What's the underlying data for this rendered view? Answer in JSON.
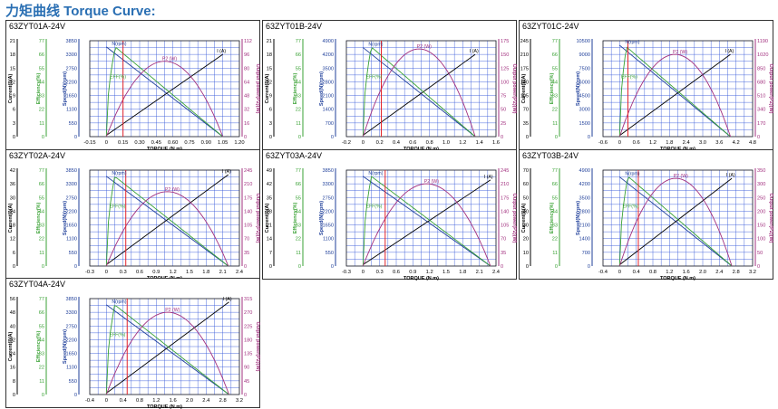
{
  "page_title": "力矩曲线 Torque Curve:",
  "colors": {
    "title": "#2a6fb3",
    "grid": "#3a5bd9",
    "current": "#000000",
    "efficiency": "#3aa235",
    "speed": "#1f3f9a",
    "power": "#a2307f",
    "marker": "#e3232a"
  },
  "chart_data": [
    {
      "type": "line",
      "title": "63ZYT01A-24V",
      "current_ticks": [
        "0",
        "3",
        "6",
        "9",
        "12",
        "15",
        "18",
        "21"
      ],
      "eff_ticks": [
        "0",
        "11",
        "22",
        "33",
        "44",
        "55",
        "66",
        "77"
      ],
      "speed_ticks": [
        "0",
        "550",
        "1100",
        "1650",
        "2200",
        "2750",
        "3300",
        "3850"
      ],
      "power_ticks": [
        "0",
        "16",
        "32",
        "48",
        "64",
        "80",
        "96",
        "112"
      ],
      "x_ticks": [
        "-0.15",
        "0",
        "0.15",
        "0.30",
        "0.45",
        "0.60",
        "0.75",
        "0.90",
        "1.05",
        "1.20"
      ],
      "xlim": [
        -0.15,
        1.2
      ],
      "ylim_speed": [
        0,
        3850
      ],
      "ylim_current": [
        0,
        21
      ],
      "ylim_eff": [
        0,
        77
      ],
      "ylim_power": [
        0,
        112
      ],
      "stall_torque": 1.05,
      "no_load_speed": 3600,
      "stall_current": 18,
      "no_load_current": 0.3,
      "max_eff": 72,
      "eff_peak_torque": 0.08,
      "max_power": 88,
      "rated_torque": 0.15,
      "series": [
        {
          "name": "I (A)"
        },
        {
          "name": "N(rpm)"
        },
        {
          "name": "EFF(%)"
        },
        {
          "name": "P2 (W)"
        }
      ]
    },
    {
      "type": "line",
      "title": "63ZYT01B-24V",
      "current_ticks": [
        "0",
        "3",
        "6",
        "9",
        "12",
        "15",
        "18",
        "21"
      ],
      "eff_ticks": [
        "0",
        "11",
        "22",
        "33",
        "44",
        "55",
        "66",
        "77"
      ],
      "speed_ticks": [
        "0",
        "700",
        "1400",
        "2100",
        "2800",
        "3500",
        "4200",
        "4900"
      ],
      "power_ticks": [
        "0",
        "25",
        "50",
        "75",
        "100",
        "125",
        "150",
        "175"
      ],
      "x_ticks": [
        "-0.2",
        "0",
        "0.2",
        "0.4",
        "0.6",
        "0.8",
        "1.0",
        "1.2",
        "1.4",
        "1.6"
      ],
      "xlim": [
        -0.2,
        1.6
      ],
      "ylim_speed": [
        0,
        4900
      ],
      "ylim_current": [
        0,
        21
      ],
      "ylim_eff": [
        0,
        77
      ],
      "ylim_power": [
        0,
        175
      ],
      "stall_torque": 1.35,
      "no_load_speed": 4550,
      "stall_current": 18,
      "no_load_current": 0.3,
      "max_eff": 72,
      "eff_peak_torque": 0.1,
      "max_power": 160,
      "rated_torque": 0.22,
      "series": [
        {
          "name": "I (A)"
        },
        {
          "name": "N(rpm)"
        },
        {
          "name": "EFF(%)"
        },
        {
          "name": "P2 (W)"
        }
      ]
    },
    {
      "type": "line",
      "title": "63ZYT01C-24V",
      "current_ticks": [
        "0",
        "35",
        "70",
        "105",
        "140",
        "175",
        "210",
        "245"
      ],
      "eff_ticks": [
        "0",
        "11",
        "22",
        "33",
        "44",
        "55",
        "66",
        "77"
      ],
      "speed_ticks": [
        "0",
        "1500",
        "3000",
        "4500",
        "6000",
        "7500",
        "9000",
        "10500"
      ],
      "power_ticks": [
        "0",
        "170",
        "340",
        "510",
        "680",
        "850",
        "1020",
        "1190"
      ],
      "x_ticks": [
        "-0.6",
        "0",
        "0.6",
        "1.2",
        "1.8",
        "2.4",
        "3.0",
        "3.6",
        "4.2",
        "4.8"
      ],
      "xlim": [
        -0.6,
        4.8
      ],
      "ylim_speed": [
        0,
        10500
      ],
      "ylim_current": [
        0,
        245
      ],
      "ylim_eff": [
        0,
        77
      ],
      "ylim_power": [
        0,
        1190
      ],
      "stall_torque": 4.0,
      "no_load_speed": 10000,
      "stall_current": 210,
      "no_load_current": 3,
      "max_eff": 72,
      "eff_peak_torque": 0.25,
      "max_power": 1020,
      "rated_torque": 0.3,
      "series": [
        {
          "name": "I (A)"
        },
        {
          "name": "N(rpm)"
        },
        {
          "name": "EFF(%)"
        },
        {
          "name": "P2 (W)"
        }
      ]
    },
    {
      "type": "line",
      "title": "63ZYT02A-24V",
      "current_ticks": [
        "0",
        "6",
        "12",
        "18",
        "24",
        "30",
        "36",
        "42"
      ],
      "eff_ticks": [
        "0",
        "11",
        "22",
        "33",
        "44",
        "55",
        "66",
        "77"
      ],
      "speed_ticks": [
        "0",
        "550",
        "1100",
        "1650",
        "2200",
        "2750",
        "3300",
        "3850"
      ],
      "power_ticks": [
        "0",
        "35",
        "70",
        "105",
        "140",
        "175",
        "210",
        "245"
      ],
      "x_ticks": [
        "-0.3",
        "0",
        "0.3",
        "0.6",
        "0.9",
        "1.2",
        "1.5",
        "1.8",
        "2.1",
        "2.4"
      ],
      "xlim": [
        -0.3,
        2.4
      ],
      "ylim_speed": [
        0,
        3850
      ],
      "ylim_current": [
        0,
        42
      ],
      "ylim_eff": [
        0,
        77
      ],
      "ylim_power": [
        0,
        245
      ],
      "stall_torque": 2.2,
      "no_load_speed": 3600,
      "stall_current": 40,
      "no_load_current": 0.6,
      "max_eff": 72,
      "eff_peak_torque": 0.15,
      "max_power": 190,
      "rated_torque": 0.35,
      "series": [
        {
          "name": "I (A)"
        },
        {
          "name": "N(rpm)"
        },
        {
          "name": "EFF(%)"
        },
        {
          "name": "P2 (W)"
        }
      ]
    },
    {
      "type": "line",
      "title": "63ZYT03A-24V",
      "current_ticks": [
        "0",
        "7",
        "14",
        "21",
        "28",
        "35",
        "42",
        "49"
      ],
      "eff_ticks": [
        "0",
        "11",
        "22",
        "33",
        "44",
        "55",
        "66",
        "77"
      ],
      "speed_ticks": [
        "0",
        "550",
        "1100",
        "1650",
        "2200",
        "2750",
        "3300",
        "3850"
      ],
      "power_ticks": [
        "0",
        "35",
        "70",
        "105",
        "140",
        "175",
        "210",
        "245"
      ],
      "x_ticks": [
        "-0.3",
        "0",
        "0.3",
        "0.6",
        "0.9",
        "1.2",
        "1.5",
        "1.8",
        "2.1",
        "2.4"
      ],
      "xlim": [
        -0.3,
        2.4
      ],
      "ylim_speed": [
        0,
        3850
      ],
      "ylim_current": [
        0,
        49
      ],
      "ylim_eff": [
        0,
        77
      ],
      "ylim_power": [
        0,
        245
      ],
      "stall_torque": 2.3,
      "no_load_speed": 3600,
      "stall_current": 44,
      "no_load_current": 0.7,
      "max_eff": 72,
      "eff_peak_torque": 0.15,
      "max_power": 210,
      "rated_torque": 0.4,
      "series": [
        {
          "name": "I (A)"
        },
        {
          "name": "N(rpm)"
        },
        {
          "name": "EFF(%)"
        },
        {
          "name": "P2 (W)"
        }
      ]
    },
    {
      "type": "line",
      "title": "63ZYT03B-24V",
      "current_ticks": [
        "0",
        "10",
        "20",
        "30",
        "40",
        "50",
        "60",
        "70"
      ],
      "eff_ticks": [
        "0",
        "11",
        "22",
        "33",
        "44",
        "55",
        "66",
        "77"
      ],
      "speed_ticks": [
        "0",
        "700",
        "1400",
        "2100",
        "2800",
        "3500",
        "4200",
        "4900"
      ],
      "power_ticks": [
        "0",
        "50",
        "100",
        "150",
        "200",
        "250",
        "300",
        "350"
      ],
      "x_ticks": [
        "-0.4",
        "0",
        "0.4",
        "0.8",
        "1.2",
        "1.6",
        "2.0",
        "2.4",
        "2.8",
        "3.2"
      ],
      "xlim": [
        -0.4,
        3.2
      ],
      "ylim_speed": [
        0,
        4900
      ],
      "ylim_current": [
        0,
        70
      ],
      "ylim_eff": [
        0,
        77
      ],
      "ylim_power": [
        0,
        350
      ],
      "stall_torque": 2.7,
      "no_load_speed": 4550,
      "stall_current": 64,
      "no_load_current": 0.9,
      "max_eff": 72,
      "eff_peak_torque": 0.2,
      "max_power": 320,
      "rated_torque": 0.45,
      "series": [
        {
          "name": "I (A)"
        },
        {
          "name": "N(rpm)"
        },
        {
          "name": "EFF(%)"
        },
        {
          "name": "P2 (W)"
        }
      ]
    },
    {
      "type": "line",
      "title": "63ZYT04A-24V",
      "current_ticks": [
        "0",
        "8",
        "16",
        "24",
        "32",
        "40",
        "48",
        "56"
      ],
      "eff_ticks": [
        "0",
        "11",
        "22",
        "33",
        "44",
        "55",
        "66",
        "77"
      ],
      "speed_ticks": [
        "0",
        "550",
        "1100",
        "1650",
        "2200",
        "2750",
        "3300",
        "3850"
      ],
      "power_ticks": [
        "0",
        "45",
        "90",
        "135",
        "180",
        "225",
        "270",
        "315"
      ],
      "x_ticks": [
        "-0.4",
        "0",
        "0.4",
        "0.8",
        "1.2",
        "1.6",
        "2.0",
        "2.4",
        "2.8",
        "3.2"
      ],
      "xlim": [
        -0.4,
        3.2
      ],
      "ylim_speed": [
        0,
        3850
      ],
      "ylim_current": [
        0,
        56
      ],
      "ylim_eff": [
        0,
        77
      ],
      "ylim_power": [
        0,
        315
      ],
      "stall_torque": 2.95,
      "no_load_speed": 3600,
      "stall_current": 54,
      "no_load_current": 0.8,
      "max_eff": 72,
      "eff_peak_torque": 0.2,
      "max_power": 270,
      "rated_torque": 0.5,
      "series": [
        {
          "name": "I (A)"
        },
        {
          "name": "N(rpm)"
        },
        {
          "name": "EFF(%)"
        },
        {
          "name": "P2 (W)"
        }
      ]
    }
  ],
  "axis_labels": {
    "current": "Current(I)(A)",
    "efficiency": "Efficiency(%)",
    "speed": "Speed(N)(rpm)",
    "power": "Output power(P2)(W)",
    "torque": "TORQUE (N.m)"
  }
}
